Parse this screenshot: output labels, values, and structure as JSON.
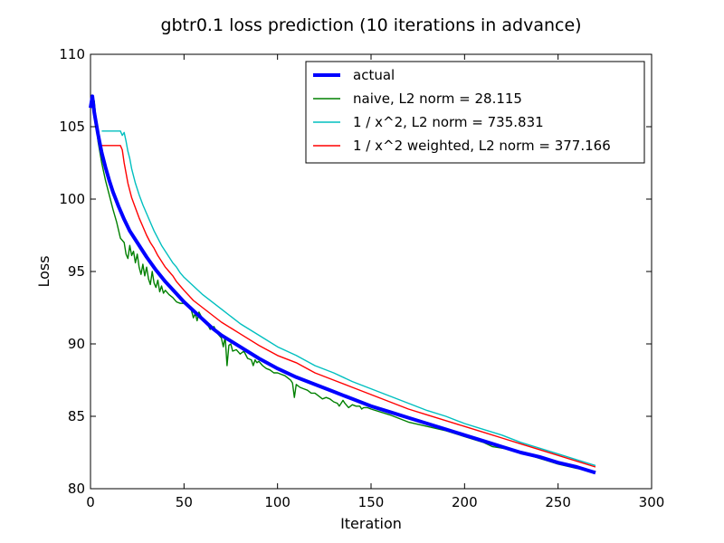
{
  "chart_data": {
    "type": "line",
    "title": "gbtr0.1 loss prediction (10 iterations in advance)",
    "xlabel": "Iteration",
    "ylabel": "Loss",
    "xlim": [
      0,
      300
    ],
    "ylim": [
      80,
      110
    ],
    "xticks": [
      "0",
      "50",
      "100",
      "150",
      "200",
      "250",
      "300"
    ],
    "yticks": [
      "80",
      "85",
      "90",
      "95",
      "100",
      "105",
      "110"
    ],
    "grid": false,
    "legend_position": "top-right",
    "series": [
      {
        "name": "actual",
        "color": "#0000ff",
        "x": [
          0,
          1,
          2,
          4,
          6,
          8,
          10,
          12,
          15,
          18,
          21,
          25,
          30,
          35,
          40,
          45,
          50,
          55,
          60,
          65,
          70,
          75,
          80,
          90,
          100,
          110,
          120,
          130,
          140,
          150,
          160,
          170,
          180,
          190,
          200,
          210,
          220,
          230,
          240,
          250,
          260,
          270
        ],
        "y": [
          106.3,
          107.1,
          106.0,
          104.5,
          103.2,
          102.2,
          101.3,
          100.5,
          99.5,
          98.6,
          97.8,
          97.0,
          96.0,
          95.1,
          94.3,
          93.6,
          92.9,
          92.3,
          91.7,
          91.1,
          90.6,
          90.2,
          89.8,
          89.0,
          88.3,
          87.7,
          87.2,
          86.7,
          86.2,
          85.7,
          85.3,
          84.9,
          84.5,
          84.1,
          83.7,
          83.3,
          82.9,
          82.5,
          82.2,
          81.8,
          81.5,
          81.1
        ]
      },
      {
        "name": "naive, L2 norm = 28.115",
        "color": "#008000",
        "x": [
          0,
          2,
          4,
          6,
          8,
          10,
          12,
          14,
          16,
          18,
          19,
          20,
          21,
          22,
          23,
          24,
          25,
          26,
          27,
          28,
          29,
          30,
          31,
          32,
          33,
          34,
          35,
          36,
          37,
          38,
          39,
          40,
          42,
          44,
          46,
          48,
          50,
          52,
          54,
          55,
          56,
          57,
          58,
          60,
          62,
          64,
          66,
          68,
          70,
          71,
          72,
          73,
          74,
          75,
          76,
          78,
          80,
          82,
          84,
          86,
          87,
          88,
          89,
          90,
          92,
          94,
          96,
          98,
          100,
          102,
          104,
          106,
          107,
          108,
          109,
          110,
          112,
          114,
          116,
          118,
          120,
          122,
          124,
          126,
          128,
          130,
          132,
          133,
          134,
          135,
          136,
          138,
          140,
          142,
          144,
          145,
          146,
          148,
          150,
          160,
          170,
          180,
          190,
          200,
          210,
          215,
          220,
          225,
          230,
          235,
          240,
          245,
          250,
          260,
          270
        ],
        "y": [
          106.3,
          106.8,
          104.0,
          102.5,
          101.3,
          100.3,
          99.3,
          98.4,
          97.3,
          97.0,
          96.2,
          95.9,
          96.8,
          96.1,
          96.4,
          95.6,
          96.2,
          95.3,
          94.8,
          95.5,
          94.7,
          95.3,
          94.5,
          94.1,
          95.0,
          94.2,
          93.9,
          94.4,
          93.6,
          94.0,
          93.5,
          93.7,
          93.4,
          93.2,
          92.9,
          92.8,
          92.8,
          92.6,
          92.3,
          91.8,
          92.1,
          91.6,
          92.2,
          91.7,
          91.5,
          91.0,
          91.2,
          90.7,
          90.4,
          89.8,
          90.5,
          88.5,
          89.9,
          90.0,
          89.5,
          89.6,
          89.3,
          89.5,
          89.0,
          88.9,
          88.5,
          88.9,
          88.7,
          88.8,
          88.5,
          88.3,
          88.2,
          88.0,
          88.0,
          87.9,
          87.8,
          87.6,
          87.5,
          87.3,
          86.3,
          87.2,
          87.0,
          86.9,
          86.8,
          86.6,
          86.6,
          86.4,
          86.2,
          86.3,
          86.2,
          86.0,
          85.9,
          85.7,
          85.9,
          86.1,
          85.9,
          85.6,
          85.8,
          85.7,
          85.7,
          85.5,
          85.6,
          85.6,
          85.5,
          85.1,
          84.6,
          84.3,
          84.0,
          83.6,
          83.2,
          82.9,
          82.8,
          82.7,
          82.5,
          82.3,
          82.1,
          81.9,
          81.7,
          81.4,
          81.2
        ]
      },
      {
        "name": "1 / x^2, L2 norm = 735.831",
        "color": "#00bfbf",
        "x": [
          6,
          8,
          10,
          12,
          14,
          16,
          17,
          18,
          19,
          20,
          21,
          22,
          24,
          26,
          28,
          30,
          32,
          34,
          36,
          38,
          40,
          42,
          44,
          46,
          48,
          50,
          55,
          60,
          65,
          70,
          75,
          80,
          90,
          100,
          110,
          120,
          130,
          140,
          150,
          160,
          170,
          180,
          190,
          200,
          210,
          220,
          230,
          240,
          250,
          260,
          270
        ],
        "y": [
          104.7,
          104.7,
          104.7,
          104.7,
          104.7,
          104.7,
          104.4,
          104.6,
          104.0,
          103.3,
          102.8,
          102.1,
          101.1,
          100.3,
          99.6,
          99.0,
          98.4,
          97.8,
          97.3,
          96.8,
          96.4,
          96.0,
          95.6,
          95.3,
          94.9,
          94.6,
          94.0,
          93.4,
          92.9,
          92.4,
          91.9,
          91.4,
          90.6,
          89.8,
          89.2,
          88.5,
          88.0,
          87.4,
          86.9,
          86.4,
          85.9,
          85.4,
          85.0,
          84.5,
          84.1,
          83.7,
          83.2,
          82.8,
          82.4,
          82.0,
          81.6
        ]
      },
      {
        "name": "1 / x^2 weighted, L2 norm = 377.166",
        "color": "#ff0000",
        "x": [
          6,
          8,
          10,
          12,
          14,
          16,
          17,
          18,
          20,
          22,
          24,
          26,
          28,
          30,
          32,
          34,
          36,
          38,
          40,
          42,
          44,
          46,
          48,
          50,
          55,
          60,
          65,
          70,
          75,
          80,
          90,
          100,
          110,
          120,
          130,
          140,
          150,
          160,
          170,
          180,
          190,
          200,
          210,
          220,
          230,
          240,
          250,
          260,
          270
        ],
        "y": [
          103.7,
          103.7,
          103.7,
          103.7,
          103.7,
          103.7,
          103.4,
          102.5,
          101.1,
          100.1,
          99.4,
          98.7,
          98.1,
          97.5,
          97.0,
          96.6,
          96.1,
          95.7,
          95.3,
          95.0,
          94.7,
          94.3,
          94.0,
          93.7,
          93.0,
          92.5,
          92.0,
          91.5,
          91.1,
          90.7,
          89.9,
          89.2,
          88.7,
          88.0,
          87.5,
          87.0,
          86.5,
          86.0,
          85.5,
          85.1,
          84.7,
          84.3,
          83.9,
          83.5,
          83.1,
          82.7,
          82.3,
          81.9,
          81.5
        ]
      }
    ]
  }
}
